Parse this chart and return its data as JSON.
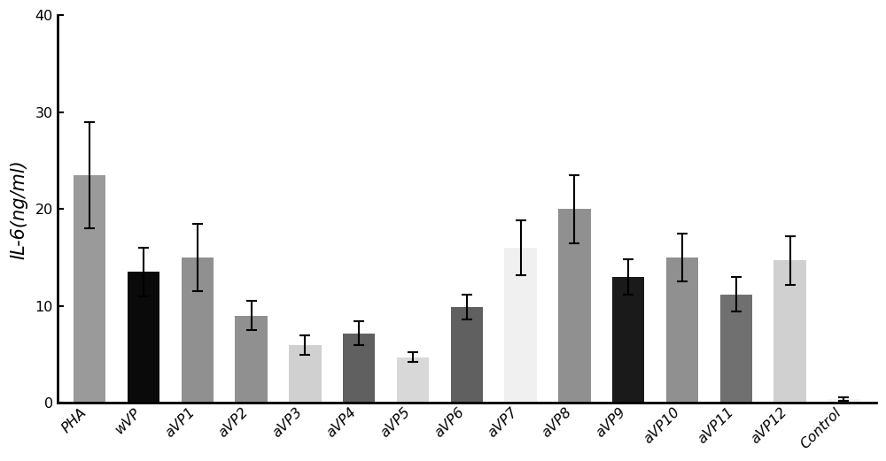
{
  "categories": [
    "PHA",
    "wVP",
    "aVP1",
    "aVP2",
    "aVP3",
    "aVP4",
    "aVP5",
    "aVP6",
    "aVP7",
    "aVP8",
    "aVP9",
    "aVP10",
    "aVP11",
    "aVP12",
    "Control"
  ],
  "values": [
    23.5,
    13.5,
    15.0,
    9.0,
    6.0,
    7.2,
    4.7,
    9.9,
    16.0,
    20.0,
    13.0,
    15.0,
    11.2,
    14.7,
    0.4
  ],
  "errors": [
    5.5,
    2.5,
    3.5,
    1.5,
    1.0,
    1.2,
    0.5,
    1.3,
    2.8,
    3.5,
    1.8,
    2.5,
    1.8,
    2.5,
    0.15
  ],
  "colors": [
    "#9a9a9a",
    "#0a0a0a",
    "#909090",
    "#909090",
    "#d0d0d0",
    "#606060",
    "#d8d8d8",
    "#606060",
    "#f0f0f0",
    "#909090",
    "#1a1a1a",
    "#909090",
    "#707070",
    "#d0d0d0",
    "#f5f5f5"
  ],
  "ylabel": "IL-6(ng/ml)",
  "ylim": [
    0,
    40
  ],
  "yticks": [
    0,
    10,
    20,
    30,
    40
  ],
  "background_color": "#ffffff",
  "bar_width": 0.6,
  "capsize": 4,
  "error_linewidth": 1.5,
  "ylabel_fontsize": 15,
  "tick_fontsize": 11.5
}
